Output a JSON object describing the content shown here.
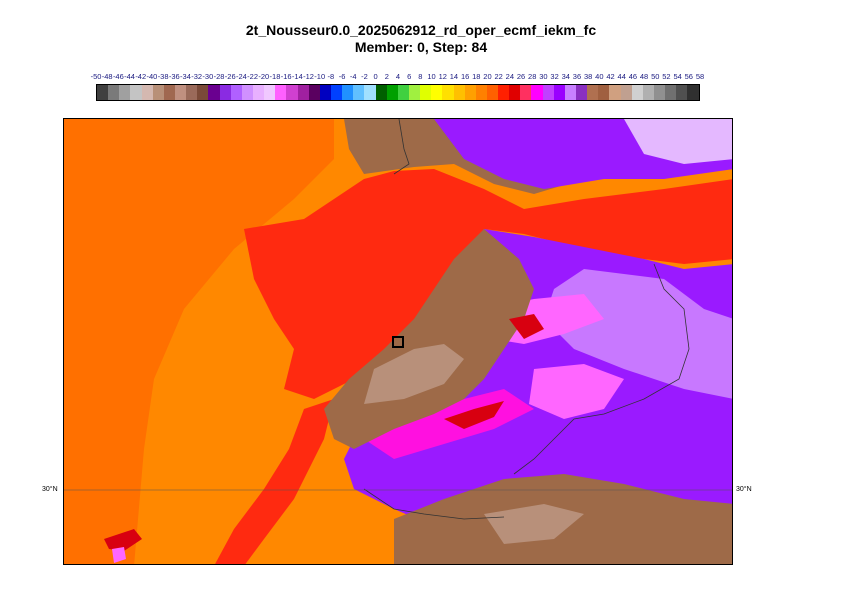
{
  "title": {
    "line1": "2t_Nousseur0.0_2025062912_rd_oper_ecmf_iekm_fc",
    "line2": "Member: 0, Step: 84"
  },
  "colorbar": {
    "labels": [
      "-50",
      "-48",
      "-46",
      "-44",
      "-42",
      "-40",
      "-38",
      "-36",
      "-34",
      "-32",
      "-30",
      "-28",
      "-26",
      "-24",
      "-22",
      "-20",
      "-18",
      "-16",
      "-14",
      "-12",
      "-10",
      "-8",
      "-6",
      "-4",
      "-2",
      "0",
      "2",
      "4",
      "6",
      "8",
      "10",
      "12",
      "14",
      "16",
      "18",
      "20",
      "22",
      "24",
      "26",
      "28",
      "30",
      "32",
      "34",
      "36",
      "38",
      "40",
      "42",
      "44",
      "46",
      "48",
      "50",
      "52",
      "54",
      "56",
      "58"
    ],
    "colors": [
      "#404040",
      "#7a7a7a",
      "#a0a0a0",
      "#c4c4c4",
      "#d4b8b0",
      "#b89078",
      "#a06850",
      "#c09080",
      "#9a6a5a",
      "#7a4a38",
      "#6a0090",
      "#8a2be2",
      "#b060ff",
      "#d090ff",
      "#e8b0ff",
      "#f0c8ff",
      "#ff60ff",
      "#d040d0",
      "#a020a0",
      "#5a0060",
      "#0000c0",
      "#0040ff",
      "#2090ff",
      "#60c0ff",
      "#a0e0ff",
      "#006000",
      "#00a000",
      "#40d040",
      "#a0f040",
      "#e0ff00",
      "#ffff00",
      "#ffe000",
      "#ffc000",
      "#ffa000",
      "#ff8000",
      "#ff6000",
      "#ff2000",
      "#e00000",
      "#ff3060",
      "#ff00ff",
      "#c040ff",
      "#9a00ff",
      "#c880ff",
      "#8a30c0",
      "#b07050",
      "#a06040",
      "#d0a080",
      "#c0a090",
      "#d0d0d0",
      "#b0b0b0",
      "#909090",
      "#707070",
      "#505050",
      "#303030"
    ]
  },
  "map": {
    "lat_label_left": "30°N",
    "lat_label_right": "30°N",
    "colors": {
      "ocean": "#ff8800",
      "ocean_dark": "#ff7000",
      "hot_ocean": "#ff2a10",
      "red_dark": "#d80010",
      "land_brown": "#9e6a48",
      "land_light": "#b8907a",
      "purple": "#9a1aff",
      "violet": "#c878ff",
      "pink": "#ff66ff",
      "magenta": "#ff10e0",
      "pale": "#e4b8ff"
    }
  }
}
